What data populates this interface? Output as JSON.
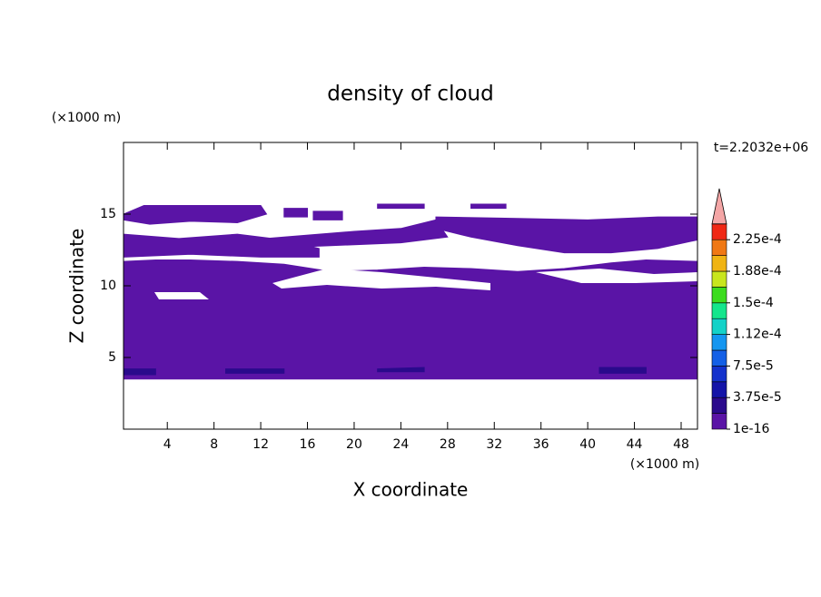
{
  "chart_data": {
    "type": "contour",
    "title": "density of cloud",
    "x_label": "X coordinate",
    "y_label": "Z coordinate",
    "x_unit": "(×1000 m)",
    "y_unit": "(×1000 m)",
    "annotation": "t=2.2032e+06",
    "xlim": [
      0.25,
      49.4
    ],
    "ylim": [
      0,
      20
    ],
    "xticks": [
      4,
      8,
      12,
      16,
      20,
      24,
      28,
      32,
      36,
      40,
      44,
      48
    ],
    "yticks": [
      5,
      10,
      15
    ],
    "colorbar_ticks": [
      {
        "value": 1e-16,
        "label": "1e-16"
      },
      {
        "value": 3.75e-05,
        "label": "3.75e-5"
      },
      {
        "value": 7.5e-05,
        "label": "7.5e-5"
      },
      {
        "value": 0.000112,
        "label": "1.12e-4"
      },
      {
        "value": 0.00015,
        "label": "1.5e-4"
      },
      {
        "value": 0.000188,
        "label": "1.88e-4"
      },
      {
        "value": 0.000225,
        "label": "2.25e-4"
      }
    ],
    "colors": [
      "#5a14a6",
      "#2a0a8c",
      "#1414a8",
      "#1432cc",
      "#1460e6",
      "#1496f0",
      "#14d2c8",
      "#14e68c",
      "#3cdc1e",
      "#c8e61e",
      "#f0b414",
      "#f07814",
      "#f02814"
    ],
    "extend_color": "#f4a6a6",
    "regions": [
      {
        "level": 0,
        "x": [
          0.25,
          49.4,
          49.4,
          45,
          42,
          38,
          34,
          30,
          26,
          22,
          18,
          14,
          10,
          6,
          3,
          0.25
        ],
        "z": [
          3.5,
          3.5,
          11.7,
          11.8,
          11.6,
          11.2,
          11.0,
          11.2,
          11.3,
          11.1,
          11.0,
          11.5,
          11.7,
          11.8,
          11.8,
          11.7
        ]
      },
      {
        "level": 0,
        "x": [
          2,
          12,
          12.5,
          10,
          6,
          2.5,
          0.25,
          0.25
        ],
        "z": [
          15.6,
          15.6,
          15.0,
          14.4,
          14.5,
          14.3,
          14.6,
          15.0
        ]
      },
      {
        "level": 0,
        "x": [
          0.25,
          5,
          10,
          14,
          17,
          17,
          12,
          6,
          0.25
        ],
        "z": [
          13.6,
          13.3,
          13.6,
          13.2,
          12.6,
          12.0,
          12.0,
          12.2,
          12.0
        ]
      },
      {
        "level": 0,
        "x": [
          14,
          16,
          16,
          14
        ],
        "z": [
          15.4,
          15.4,
          14.8,
          14.8
        ]
      },
      {
        "level": 0,
        "x": [
          16.5,
          19,
          19,
          16.5
        ],
        "z": [
          15.2,
          15.2,
          14.6,
          14.6
        ]
      },
      {
        "level": 0,
        "x": [
          22,
          26,
          26,
          22
        ],
        "z": [
          15.7,
          15.7,
          15.4,
          15.4
        ]
      },
      {
        "level": 0,
        "x": [
          30,
          33,
          33,
          30
        ],
        "z": [
          15.7,
          15.7,
          15.4,
          15.4
        ]
      },
      {
        "level": 0,
        "x": [
          8,
          14,
          20,
          24,
          27,
          28,
          24,
          18,
          12,
          8
        ],
        "z": [
          13.0,
          13.4,
          13.8,
          14.0,
          14.6,
          13.4,
          13.0,
          12.8,
          12.6,
          12.6
        ]
      },
      {
        "level": 0,
        "x": [
          27,
          34,
          40,
          46,
          49.4,
          49.4,
          46,
          42,
          38,
          34,
          30,
          27
        ],
        "z": [
          14.8,
          14.7,
          14.6,
          14.8,
          14.8,
          13.2,
          12.6,
          12.3,
          12.3,
          12.8,
          13.4,
          14.0
        ]
      },
      {
        "level": 1,
        "x": [
          0.25,
          3,
          3,
          0.25
        ],
        "z": [
          4.2,
          4.2,
          3.8,
          3.8
        ]
      },
      {
        "level": 1,
        "x": [
          9,
          14,
          14,
          9
        ],
        "z": [
          4.2,
          4.2,
          3.9,
          3.9
        ]
      },
      {
        "level": 1,
        "x": [
          22,
          26,
          26,
          22
        ],
        "z": [
          4.2,
          4.3,
          4.0,
          4.0
        ]
      },
      {
        "level": 1,
        "x": [
          41,
          45,
          45,
          41
        ],
        "z": [
          4.3,
          4.3,
          3.9,
          3.9
        ]
      }
    ]
  }
}
